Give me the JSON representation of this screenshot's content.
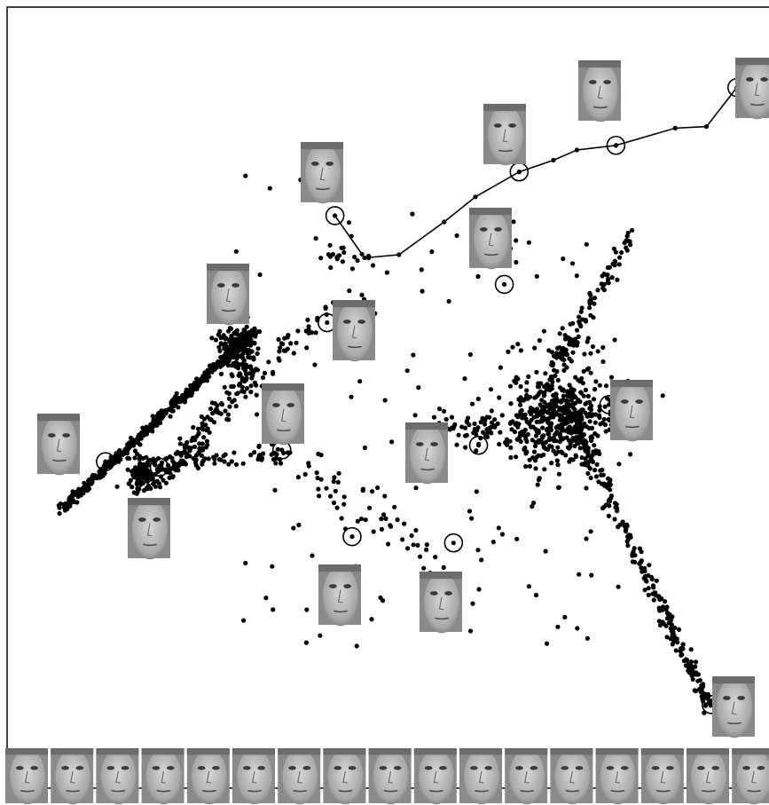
{
  "chart_data": {
    "type": "scatter",
    "title": "",
    "xlabel": "",
    "ylabel": "",
    "grid": false,
    "legend": "none",
    "xlim": [
      0,
      100
    ],
    "ylim": [
      0,
      100
    ],
    "point_color": "#000000",
    "arms": [
      {
        "from": [
          7,
          35.8
        ],
        "to": [
          31.8,
          58.6
        ],
        "count": 520,
        "spread": 0.55
      },
      {
        "from": [
          20,
          39.5
        ],
        "to": [
          31.5,
          53.5
        ],
        "count": 140,
        "spread": 1.6
      },
      {
        "from": [
          31.5,
          53.5
        ],
        "to": [
          45,
          63
        ],
        "count": 40,
        "spread": 1.8
      },
      {
        "from": [
          19,
          41.4
        ],
        "to": [
          35,
          43
        ],
        "count": 70,
        "spread": 1.4
      },
      {
        "from": [
          35,
          43
        ],
        "to": [
          56,
          28
        ],
        "count": 55,
        "spread": 3.2
      },
      {
        "from": [
          71.5,
          49
        ],
        "to": [
          90,
          10.2
        ],
        "count": 250,
        "spread": 0.9
      },
      {
        "from": [
          68,
          50
        ],
        "to": [
          80,
          71
        ],
        "count": 120,
        "spread": 1.0
      },
      {
        "from": [
          55,
          46
        ],
        "to": [
          74,
          45
        ],
        "count": 120,
        "spread": 2.2
      },
      {
        "from": [
          40.5,
          68.5
        ],
        "to": [
          47,
          67
        ],
        "count": 20,
        "spread": 1.5
      }
    ],
    "clusters": [
      {
        "center": [
          71,
          47.5
        ],
        "count": 420,
        "spread": 3.4
      },
      {
        "center": [
          29.5,
          56.5
        ],
        "count": 160,
        "spread": 1.3
      },
      {
        "center": [
          17.5,
          40.3
        ],
        "count": 120,
        "spread": 1.0
      }
    ],
    "scatter_region": {
      "xmin": 28,
      "xmax": 82,
      "ymin": 18,
      "ymax": 82,
      "count": 160
    },
    "trajectory": [
      [
        42,
        73.3
      ],
      [
        45.8,
        67.9
      ],
      [
        50.2,
        68.3
      ],
      [
        56,
        72.5
      ],
      [
        60,
        75.7
      ],
      [
        65.6,
        78.9
      ],
      [
        70,
        80.4
      ],
      [
        73,
        81.7
      ],
      [
        78,
        82.3
      ],
      [
        85.6,
        84.5
      ],
      [
        89.6,
        84.7
      ],
      [
        93.5,
        89.7
      ]
    ],
    "circled_points": [
      [
        42,
        73.3
      ],
      [
        65.6,
        78.9
      ],
      [
        78,
        82.3
      ],
      [
        93.5,
        89.7
      ],
      [
        63.7,
        64.5
      ],
      [
        41,
        59.6
      ],
      [
        29.6,
        57
      ],
      [
        12.6,
        41.8
      ],
      [
        19.5,
        41.1
      ],
      [
        35.2,
        43.3
      ],
      [
        60.4,
        43.9
      ],
      [
        77.1,
        49.1
      ],
      [
        44.2,
        32.2
      ],
      [
        57.2,
        31.4
      ],
      [
        90.2,
        10.7
      ]
    ]
  },
  "face_thumbnails": {
    "count": 21,
    "strip_count": 17,
    "tone": "#bdbdbd"
  }
}
